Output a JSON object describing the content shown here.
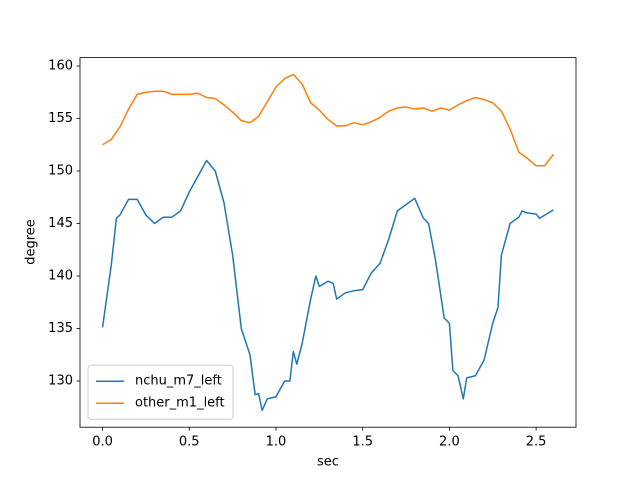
{
  "chart_data": {
    "type": "line",
    "xlabel": "sec",
    "ylabel": "degree",
    "xlim": [
      -0.13,
      2.73
    ],
    "ylim": [
      125.6,
      160.8
    ],
    "xticks": [
      {
        "value": 0,
        "label": "0.0"
      },
      0.5,
      {
        "value": 1,
        "label": "1.0"
      },
      1.5,
      {
        "value": 2,
        "label": "2.0"
      },
      2.5
    ],
    "yticks": [
      130,
      135,
      140,
      145,
      150,
      155,
      160
    ],
    "legend": "lower left",
    "series": [
      {
        "name": "nchu_m7_left",
        "color": "#1f77b4",
        "x": [
          0,
          0.05,
          0.08,
          0.1,
          0.15,
          0.2,
          0.25,
          0.3,
          0.35,
          0.4,
          0.45,
          0.5,
          0.55,
          0.6,
          0.65,
          0.7,
          0.75,
          0.8,
          0.85,
          0.88,
          0.9,
          0.92,
          0.95,
          1,
          1.05,
          1.08,
          1.1,
          1.12,
          1.15,
          1.2,
          1.23,
          1.25,
          1.3,
          1.33,
          1.35,
          1.4,
          1.45,
          1.5,
          1.55,
          1.6,
          1.65,
          1.7,
          1.75,
          1.8,
          1.85,
          1.88,
          1.92,
          1.97,
          2,
          2.02,
          2.05,
          2.08,
          2.1,
          2.15,
          2.2,
          2.25,
          2.28,
          2.3,
          2.35,
          2.4,
          2.42,
          2.45,
          2.5,
          2.52,
          2.55,
          2.6
        ],
        "values": [
          135.1,
          141,
          145.5,
          145.8,
          147.3,
          147.3,
          145.8,
          145,
          145.6,
          145.6,
          146.2,
          148,
          149.5,
          151,
          150,
          147,
          142,
          135,
          132.5,
          128.7,
          128.8,
          127.2,
          128.3,
          128.5,
          130,
          130,
          132.8,
          131.6,
          133.5,
          137.8,
          140,
          139,
          139.5,
          139.3,
          137.8,
          138.4,
          138.6,
          138.7,
          140.3,
          141.2,
          143.5,
          146.2,
          146.8,
          147.4,
          145.5,
          145,
          141.5,
          136,
          135.5,
          131,
          130.5,
          128.3,
          130.3,
          130.5,
          132,
          135.5,
          137,
          142,
          145,
          145.6,
          146.2,
          146,
          145.9,
          145.5,
          145.8,
          146.3
        ]
      },
      {
        "name": "other_m1_left",
        "color": "#ff7f0e",
        "x": [
          0,
          0.05,
          0.1,
          0.15,
          0.2,
          0.25,
          0.3,
          0.35,
          0.4,
          0.5,
          0.55,
          0.6,
          0.65,
          0.7,
          0.75,
          0.8,
          0.85,
          0.9,
          0.95,
          1,
          1.05,
          1.1,
          1.15,
          1.2,
          1.25,
          1.3,
          1.35,
          1.4,
          1.45,
          1.5,
          1.55,
          1.6,
          1.65,
          1.7,
          1.75,
          1.8,
          1.85,
          1.9,
          1.95,
          2,
          2.05,
          2.1,
          2.15,
          2.2,
          2.25,
          2.3,
          2.35,
          2.4,
          2.45,
          2.5,
          2.55,
          2.6
        ],
        "values": [
          152.5,
          153,
          154.2,
          155.9,
          157.3,
          157.5,
          157.6,
          157.6,
          157.3,
          157.3,
          157.4,
          157,
          156.9,
          156.3,
          155.6,
          154.8,
          154.6,
          155.2,
          156.6,
          158,
          158.8,
          159.2,
          158.3,
          156.5,
          155.8,
          154.9,
          154.3,
          154.3,
          154.6,
          154.4,
          154.7,
          155.1,
          155.7,
          156,
          156.1,
          155.9,
          156,
          155.7,
          156,
          155.8,
          156.3,
          156.7,
          157,
          156.8,
          156.5,
          155.7,
          154,
          151.8,
          151.2,
          150.5,
          150.5,
          151.6
        ]
      }
    ]
  }
}
